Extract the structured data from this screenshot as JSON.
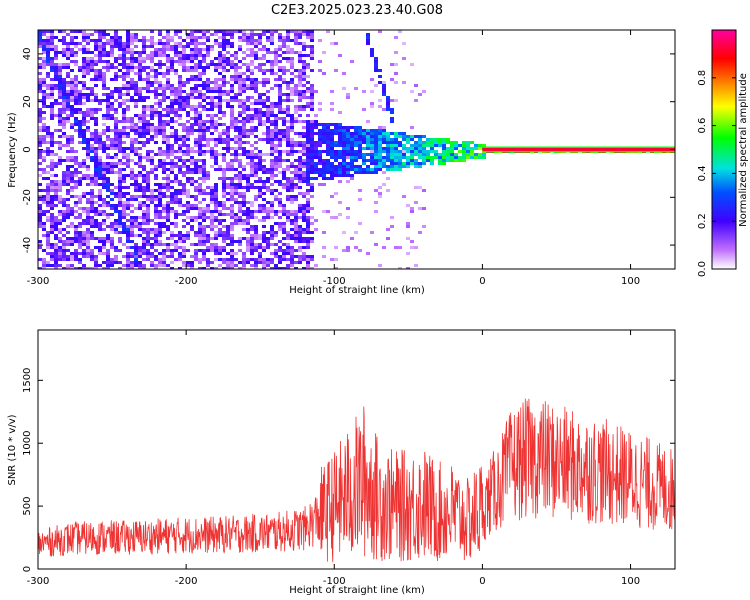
{
  "title": "C2E3.2025.023.23.40.G08",
  "chart_data": [
    {
      "type": "heatmap",
      "xlabel": "Height of straight line (km)",
      "ylabel": "Frequency (Hz)",
      "xlim": [
        -300,
        130
      ],
      "ylim": [
        -50,
        50
      ],
      "xticks": [
        -300,
        -200,
        -100,
        0,
        100
      ],
      "yticks": [
        -40,
        -20,
        0,
        20,
        40
      ],
      "colorbar": {
        "label": "Normalized spectral amplitude",
        "range": [
          0.0,
          1.0
        ],
        "ticks": [
          0.0,
          0.2,
          0.4,
          0.6,
          0.8
        ],
        "tick_labels": [
          "0.0",
          "0.2",
          "0.4",
          "0.6",
          "0.8"
        ]
      },
      "features": [
        {
          "desc": "dominant carrier line",
          "x_from": 0,
          "x_to": 130,
          "freq": 0,
          "amplitude": 1.0
        },
        {
          "desc": "broadened central band",
          "x_from": -110,
          "x_to": 0,
          "freq": 0,
          "amplitude": 0.5
        },
        {
          "desc": "diagonal trace",
          "x_from": -300,
          "x_to": -230,
          "freq_from": 48,
          "freq_to": -50
        },
        {
          "desc": "diagonal trace",
          "x_from": -80,
          "x_to": -60,
          "freq_from": 50,
          "freq_to": 10
        }
      ]
    },
    {
      "type": "line",
      "xlabel": "Height of straight line (km)",
      "ylabel": "SNR (10 * v/v)",
      "xlim": [
        -300,
        130
      ],
      "ylim": [
        0,
        1900
      ],
      "xticks": [
        -300,
        -200,
        -100,
        0,
        100
      ],
      "yticks": [
        0,
        500,
        1000,
        1500
      ],
      "series": [
        {
          "color": "#ee3333",
          "x": [
            -300,
            -280,
            -260,
            -240,
            -220,
            -200,
            -180,
            -160,
            -140,
            -120,
            -110,
            -100,
            -90,
            -80,
            -70,
            -60,
            -50,
            -40,
            -30,
            -20,
            -10,
            0,
            10,
            20,
            30,
            40,
            60,
            80,
            100,
            120,
            130
          ],
          "y": [
            200,
            240,
            250,
            250,
            260,
            270,
            270,
            280,
            290,
            320,
            420,
            500,
            600,
            700,
            550,
            500,
            500,
            520,
            450,
            450,
            380,
            480,
            650,
            830,
            880,
            880,
            820,
            780,
            720,
            650,
            620
          ]
        }
      ]
    }
  ]
}
